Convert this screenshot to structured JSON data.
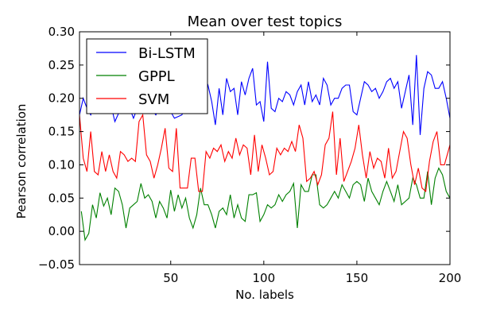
{
  "chart_data": {
    "type": "line",
    "title": "Mean over test topics",
    "xlabel": "No. labels",
    "ylabel": "Pearson correlation",
    "xlim": [
      1,
      200
    ],
    "ylim": [
      -0.05,
      0.3
    ],
    "xticks": [
      50,
      100,
      150,
      200
    ],
    "yticks": [
      -0.05,
      0.0,
      0.05,
      0.1,
      0.15,
      0.2,
      0.25,
      0.3
    ],
    "ytick_labels": [
      "−0.05",
      "0.00",
      "0.05",
      "0.10",
      "0.15",
      "0.20",
      "0.25",
      "0.30"
    ],
    "grid": false,
    "legend_position": "top-left",
    "series": [
      {
        "name": "Bi-LSTM",
        "color": "#0000ff",
        "anchors": [
          [
            1,
            0.175
          ],
          [
            3,
            0.2
          ],
          [
            5,
            0.185
          ],
          [
            7,
            0.175
          ],
          [
            10,
            0.195
          ],
          [
            14,
            0.19
          ],
          [
            17,
            0.2
          ],
          [
            20,
            0.165
          ],
          [
            24,
            0.19
          ],
          [
            28,
            0.185
          ],
          [
            30,
            0.17
          ],
          [
            34,
            0.2
          ],
          [
            38,
            0.19
          ],
          [
            42,
            0.175
          ],
          [
            46,
            0.195
          ],
          [
            50,
            0.18
          ],
          [
            52,
            0.17
          ],
          [
            56,
            0.175
          ],
          [
            60,
            0.2
          ],
          [
            64,
            0.21
          ],
          [
            66,
            0.22
          ],
          [
            68,
            0.235
          ],
          [
            70,
            0.22
          ],
          [
            72,
            0.195
          ],
          [
            74,
            0.16
          ],
          [
            76,
            0.215
          ],
          [
            78,
            0.175
          ],
          [
            80,
            0.23
          ],
          [
            82,
            0.21
          ],
          [
            84,
            0.215
          ],
          [
            86,
            0.175
          ],
          [
            88,
            0.225
          ],
          [
            90,
            0.205
          ],
          [
            92,
            0.23
          ],
          [
            94,
            0.245
          ],
          [
            96,
            0.19
          ],
          [
            98,
            0.195
          ],
          [
            100,
            0.165
          ],
          [
            102,
            0.255
          ],
          [
            104,
            0.185
          ],
          [
            106,
            0.18
          ],
          [
            108,
            0.2
          ],
          [
            110,
            0.195
          ],
          [
            112,
            0.21
          ],
          [
            114,
            0.205
          ],
          [
            116,
            0.19
          ],
          [
            118,
            0.21
          ],
          [
            120,
            0.22
          ],
          [
            122,
            0.19
          ],
          [
            124,
            0.225
          ],
          [
            126,
            0.195
          ],
          [
            128,
            0.205
          ],
          [
            130,
            0.19
          ],
          [
            132,
            0.23
          ],
          [
            134,
            0.22
          ],
          [
            136,
            0.19
          ],
          [
            138,
            0.2
          ],
          [
            140,
            0.2
          ],
          [
            142,
            0.215
          ],
          [
            144,
            0.22
          ],
          [
            146,
            0.22
          ],
          [
            148,
            0.18
          ],
          [
            150,
            0.175
          ],
          [
            152,
            0.2
          ],
          [
            154,
            0.225
          ],
          [
            156,
            0.22
          ],
          [
            158,
            0.21
          ],
          [
            160,
            0.215
          ],
          [
            162,
            0.2
          ],
          [
            164,
            0.21
          ],
          [
            166,
            0.225
          ],
          [
            168,
            0.23
          ],
          [
            170,
            0.215
          ],
          [
            172,
            0.225
          ],
          [
            174,
            0.185
          ],
          [
            176,
            0.21
          ],
          [
            178,
            0.235
          ],
          [
            180,
            0.16
          ],
          [
            182,
            0.265
          ],
          [
            184,
            0.145
          ],
          [
            186,
            0.215
          ],
          [
            188,
            0.24
          ],
          [
            190,
            0.235
          ],
          [
            192,
            0.215
          ],
          [
            194,
            0.215
          ],
          [
            196,
            0.225
          ],
          [
            198,
            0.2
          ],
          [
            200,
            0.17
          ]
        ]
      },
      {
        "name": "GPPL",
        "color": "#008000",
        "anchors": [
          [
            2,
            0.03
          ],
          [
            4,
            -0.013
          ],
          [
            6,
            -0.003
          ],
          [
            8,
            0.04
          ],
          [
            10,
            0.02
          ],
          [
            12,
            0.058
          ],
          [
            14,
            0.038
          ],
          [
            16,
            0.05
          ],
          [
            18,
            0.025
          ],
          [
            20,
            0.065
          ],
          [
            22,
            0.06
          ],
          [
            24,
            0.04
          ],
          [
            26,
            0.005
          ],
          [
            28,
            0.035
          ],
          [
            30,
            0.04
          ],
          [
            32,
            0.045
          ],
          [
            34,
            0.072
          ],
          [
            36,
            0.05
          ],
          [
            38,
            0.055
          ],
          [
            40,
            0.045
          ],
          [
            42,
            0.02
          ],
          [
            44,
            0.045
          ],
          [
            46,
            0.035
          ],
          [
            48,
            0.02
          ],
          [
            50,
            0.062
          ],
          [
            52,
            0.03
          ],
          [
            54,
            0.055
          ],
          [
            56,
            0.035
          ],
          [
            58,
            0.05
          ],
          [
            60,
            0.02
          ],
          [
            62,
            0.005
          ],
          [
            64,
            0.025
          ],
          [
            66,
            0.065
          ],
          [
            68,
            0.04
          ],
          [
            70,
            0.04
          ],
          [
            72,
            0.025
          ],
          [
            74,
            0.005
          ],
          [
            76,
            0.03
          ],
          [
            78,
            0.035
          ],
          [
            80,
            0.025
          ],
          [
            82,
            0.055
          ],
          [
            84,
            0.02
          ],
          [
            86,
            0.04
          ],
          [
            88,
            0.02
          ],
          [
            90,
            0.015
          ],
          [
            92,
            0.055
          ],
          [
            94,
            0.055
          ],
          [
            96,
            0.058
          ],
          [
            98,
            0.015
          ],
          [
            100,
            0.025
          ],
          [
            102,
            0.04
          ],
          [
            104,
            0.035
          ],
          [
            106,
            0.04
          ],
          [
            108,
            0.055
          ],
          [
            110,
            0.045
          ],
          [
            112,
            0.055
          ],
          [
            114,
            0.06
          ],
          [
            116,
            0.072
          ],
          [
            118,
            0.005
          ],
          [
            120,
            0.07
          ],
          [
            122,
            0.06
          ],
          [
            124,
            0.06
          ],
          [
            126,
            0.085
          ],
          [
            128,
            0.085
          ],
          [
            130,
            0.04
          ],
          [
            132,
            0.035
          ],
          [
            134,
            0.04
          ],
          [
            136,
            0.05
          ],
          [
            138,
            0.06
          ],
          [
            140,
            0.05
          ],
          [
            142,
            0.07
          ],
          [
            144,
            0.06
          ],
          [
            146,
            0.05
          ],
          [
            148,
            0.07
          ],
          [
            150,
            0.075
          ],
          [
            152,
            0.07
          ],
          [
            154,
            0.045
          ],
          [
            156,
            0.08
          ],
          [
            158,
            0.06
          ],
          [
            160,
            0.05
          ],
          [
            162,
            0.04
          ],
          [
            164,
            0.06
          ],
          [
            166,
            0.075
          ],
          [
            168,
            0.06
          ],
          [
            170,
            0.045
          ],
          [
            172,
            0.07
          ],
          [
            174,
            0.04
          ],
          [
            176,
            0.045
          ],
          [
            178,
            0.05
          ],
          [
            180,
            0.08
          ],
          [
            182,
            0.07
          ],
          [
            184,
            0.05
          ],
          [
            186,
            0.05
          ],
          [
            188,
            0.09
          ],
          [
            190,
            0.04
          ],
          [
            192,
            0.08
          ],
          [
            194,
            0.095
          ],
          [
            196,
            0.085
          ],
          [
            198,
            0.06
          ],
          [
            200,
            0.05
          ]
        ]
      },
      {
        "name": "SVM",
        "color": "#ff0000",
        "anchors": [
          [
            1,
            0.175
          ],
          [
            3,
            0.11
          ],
          [
            5,
            0.09
          ],
          [
            7,
            0.15
          ],
          [
            9,
            0.09
          ],
          [
            11,
            0.085
          ],
          [
            13,
            0.12
          ],
          [
            15,
            0.09
          ],
          [
            17,
            0.115
          ],
          [
            19,
            0.09
          ],
          [
            21,
            0.08
          ],
          [
            23,
            0.12
          ],
          [
            25,
            0.115
          ],
          [
            27,
            0.105
          ],
          [
            29,
            0.11
          ],
          [
            31,
            0.105
          ],
          [
            33,
            0.165
          ],
          [
            35,
            0.175
          ],
          [
            37,
            0.115
          ],
          [
            39,
            0.105
          ],
          [
            41,
            0.08
          ],
          [
            43,
            0.1
          ],
          [
            45,
            0.125
          ],
          [
            47,
            0.155
          ],
          [
            49,
            0.095
          ],
          [
            51,
            0.09
          ],
          [
            53,
            0.155
          ],
          [
            55,
            0.065
          ],
          [
            57,
            0.065
          ],
          [
            59,
            0.065
          ],
          [
            61,
            0.11
          ],
          [
            63,
            0.11
          ],
          [
            65,
            0.06
          ],
          [
            67,
            0.06
          ],
          [
            69,
            0.12
          ],
          [
            71,
            0.11
          ],
          [
            73,
            0.125
          ],
          [
            75,
            0.12
          ],
          [
            77,
            0.13
          ],
          [
            79,
            0.105
          ],
          [
            81,
            0.12
          ],
          [
            83,
            0.11
          ],
          [
            85,
            0.14
          ],
          [
            87,
            0.115
          ],
          [
            89,
            0.13
          ],
          [
            91,
            0.125
          ],
          [
            93,
            0.085
          ],
          [
            95,
            0.145
          ],
          [
            97,
            0.09
          ],
          [
            99,
            0.13
          ],
          [
            101,
            0.11
          ],
          [
            103,
            0.085
          ],
          [
            105,
            0.09
          ],
          [
            107,
            0.125
          ],
          [
            109,
            0.115
          ],
          [
            111,
            0.125
          ],
          [
            113,
            0.12
          ],
          [
            115,
            0.135
          ],
          [
            117,
            0.12
          ],
          [
            119,
            0.16
          ],
          [
            121,
            0.14
          ],
          [
            123,
            0.075
          ],
          [
            125,
            0.08
          ],
          [
            127,
            0.09
          ],
          [
            129,
            0.07
          ],
          [
            131,
            0.085
          ],
          [
            133,
            0.13
          ],
          [
            135,
            0.14
          ],
          [
            137,
            0.18
          ],
          [
            139,
            0.085
          ],
          [
            141,
            0.14
          ],
          [
            143,
            0.075
          ],
          [
            145,
            0.09
          ],
          [
            147,
            0.105
          ],
          [
            149,
            0.125
          ],
          [
            151,
            0.16
          ],
          [
            153,
            0.115
          ],
          [
            155,
            0.08
          ],
          [
            157,
            0.12
          ],
          [
            159,
            0.095
          ],
          [
            161,
            0.11
          ],
          [
            163,
            0.105
          ],
          [
            165,
            0.08
          ],
          [
            167,
            0.125
          ],
          [
            169,
            0.08
          ],
          [
            171,
            0.09
          ],
          [
            173,
            0.12
          ],
          [
            175,
            0.15
          ],
          [
            177,
            0.14
          ],
          [
            179,
            0.1
          ],
          [
            181,
            0.07
          ],
          [
            183,
            0.095
          ],
          [
            185,
            0.065
          ],
          [
            187,
            0.06
          ],
          [
            189,
            0.105
          ],
          [
            191,
            0.135
          ],
          [
            193,
            0.15
          ],
          [
            195,
            0.1
          ],
          [
            197,
            0.1
          ],
          [
            199,
            0.12
          ],
          [
            200,
            0.13
          ]
        ]
      }
    ]
  }
}
